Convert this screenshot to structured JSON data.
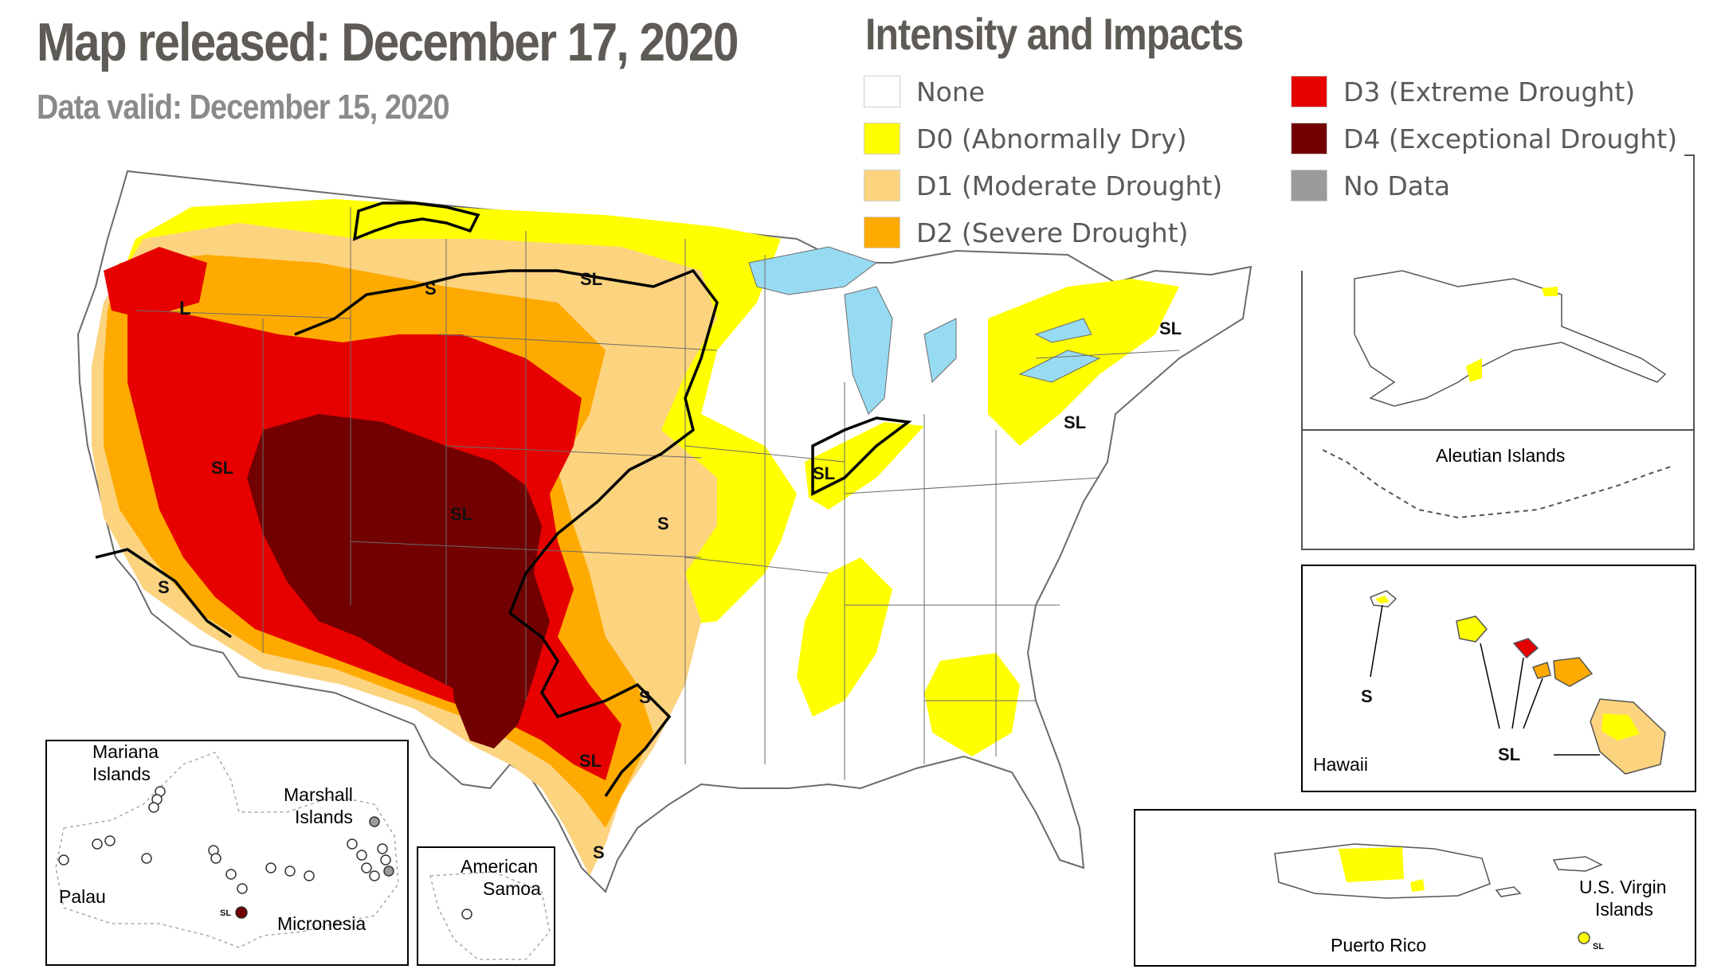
{
  "header": {
    "title": "Map released: December 17, 2020",
    "subtitle": "Data valid: December 15, 2020"
  },
  "legend": {
    "title": "Intensity and Impacts",
    "items": [
      {
        "label": "None",
        "color": "#ffffff"
      },
      {
        "label": "D0 (Abnormally Dry)",
        "color": "#ffff00"
      },
      {
        "label": "D1 (Moderate Drought)",
        "color": "#fcd37f"
      },
      {
        "label": "D2 (Severe Drought)",
        "color": "#ffaa00"
      },
      {
        "label": "D3 (Extreme Drought)",
        "color": "#e60000"
      },
      {
        "label": "D4 (Exceptional Drought)",
        "color": "#730000"
      },
      {
        "label": "No Data",
        "color": "#9b9b9b"
      }
    ]
  },
  "impact_labels": {
    "s": "S",
    "sl": "SL",
    "l": "L"
  },
  "insets": {
    "alaska": {
      "aleutian": "Aleutian Islands"
    },
    "hawaii": {
      "name": "Hawaii"
    },
    "puerto_rico": {
      "name": "Puerto Rico",
      "usvi": [
        "U.S. Virgin",
        "Islands"
      ]
    },
    "pacific": {
      "mariana": [
        "Mariana",
        "Islands"
      ],
      "marshall": [
        "Marshall",
        "Islands"
      ],
      "palau": "Palau",
      "micronesia": "Micronesia"
    },
    "samoa": {
      "name": [
        "American",
        "Samoa"
      ]
    }
  }
}
